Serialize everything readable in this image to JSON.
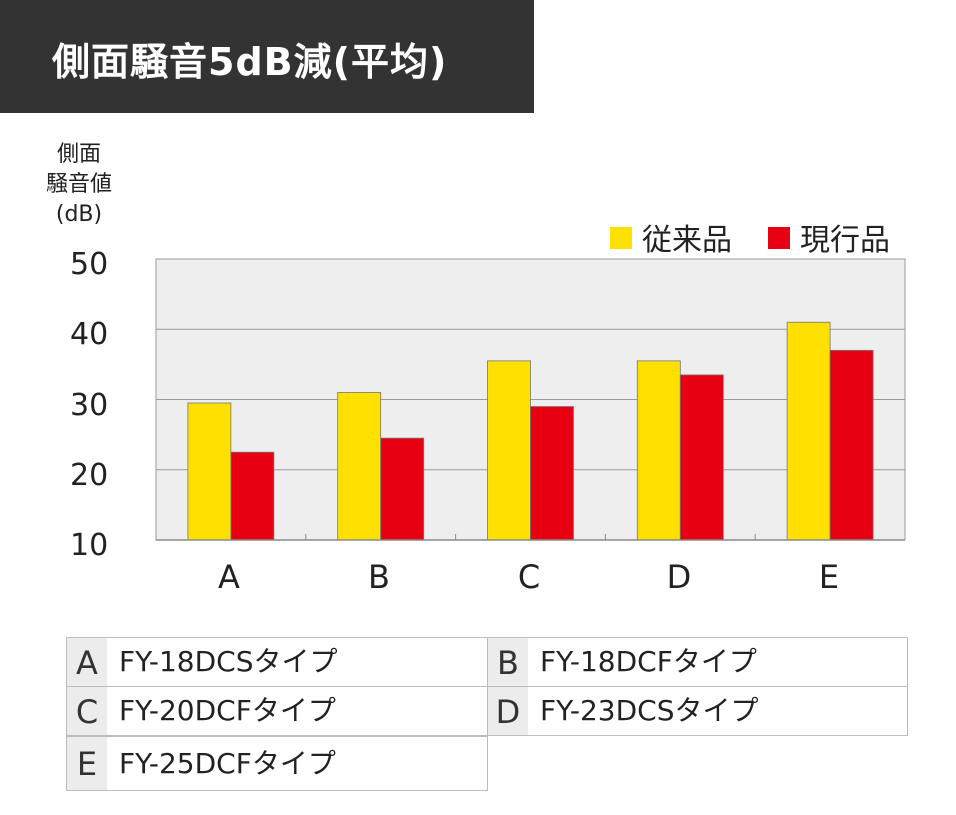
{
  "title": "側面騒音5dB減(平均)",
  "y_axis_label_lines": [
    "側面",
    "騒音値",
    "(dB)"
  ],
  "colors": {
    "conventional": "#FFE000",
    "current": "#E60012",
    "title_bg": "#333333",
    "plot_bg": "#EEEEEE"
  },
  "chart_data": {
    "type": "bar",
    "title": "側面騒音5dB減(平均)",
    "ylabel": "側面 騒音値 (dB)",
    "xlabel": "",
    "categories": [
      "A",
      "B",
      "C",
      "D",
      "E"
    ],
    "series": [
      {
        "name": "従来品",
        "values": [
          29.5,
          31,
          35.5,
          35.5,
          41
        ]
      },
      {
        "name": "現行品",
        "values": [
          22.5,
          24.5,
          29,
          33.5,
          37
        ]
      }
    ],
    "yticks": [
      "10",
      "20",
      "30",
      "40",
      "50"
    ],
    "ylim": [
      10,
      50
    ],
    "grid": true,
    "legend": "top-right"
  },
  "table": [
    {
      "key": "A",
      "value": "FY-18DCSタイプ"
    },
    {
      "key": "B",
      "value": "FY-18DCFタイプ"
    },
    {
      "key": "C",
      "value": "FY-20DCFタイプ"
    },
    {
      "key": "D",
      "value": "FY-23DCSタイプ"
    },
    {
      "key": "E",
      "value": "FY-25DCFタイプ"
    }
  ]
}
